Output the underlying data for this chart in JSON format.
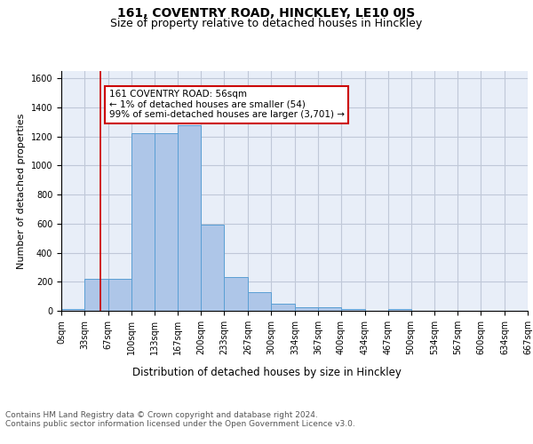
{
  "title": "161, COVENTRY ROAD, HINCKLEY, LE10 0JS",
  "subtitle": "Size of property relative to detached houses in Hinckley",
  "xlabel": "Distribution of detached houses by size in Hinckley",
  "ylabel": "Number of detached properties",
  "bar_heights": [
    15,
    220,
    220,
    1220,
    1220,
    1280,
    595,
    230,
    130,
    48,
    25,
    22,
    15,
    0,
    15,
    0,
    0,
    0,
    0,
    0
  ],
  "bin_edges": [
    0,
    33,
    67,
    100,
    133,
    167,
    200,
    233,
    267,
    300,
    334,
    367,
    400,
    434,
    467,
    500,
    534,
    567,
    600,
    634,
    667
  ],
  "tick_labels": [
    "0sqm",
    "33sqm",
    "67sqm",
    "100sqm",
    "133sqm",
    "167sqm",
    "200sqm",
    "233sqm",
    "267sqm",
    "300sqm",
    "334sqm",
    "367sqm",
    "400sqm",
    "434sqm",
    "467sqm",
    "500sqm",
    "534sqm",
    "567sqm",
    "600sqm",
    "634sqm",
    "667sqm"
  ],
  "bar_color": "#aec6e8",
  "bar_edge_color": "#5a9fd4",
  "grid_color": "#c0c8d8",
  "background_color": "#e8eef8",
  "vline_x": 56,
  "vline_color": "#cc0000",
  "annotation_line1": "161 COVENTRY ROAD: 56sqm",
  "annotation_line2": "← 1% of detached houses are smaller (54)",
  "annotation_line3": "99% of semi-detached houses are larger (3,701) →",
  "annotation_box_color": "#ffffff",
  "annotation_box_edge": "#cc0000",
  "ylim": [
    0,
    1650
  ],
  "yticks": [
    0,
    200,
    400,
    600,
    800,
    1000,
    1200,
    1400,
    1600
  ],
  "footer_text": "Contains HM Land Registry data © Crown copyright and database right 2024.\nContains public sector information licensed under the Open Government Licence v3.0.",
  "title_fontsize": 10,
  "subtitle_fontsize": 9,
  "xlabel_fontsize": 8.5,
  "ylabel_fontsize": 8,
  "tick_fontsize": 7,
  "annotation_fontsize": 7.5,
  "footer_fontsize": 6.5
}
